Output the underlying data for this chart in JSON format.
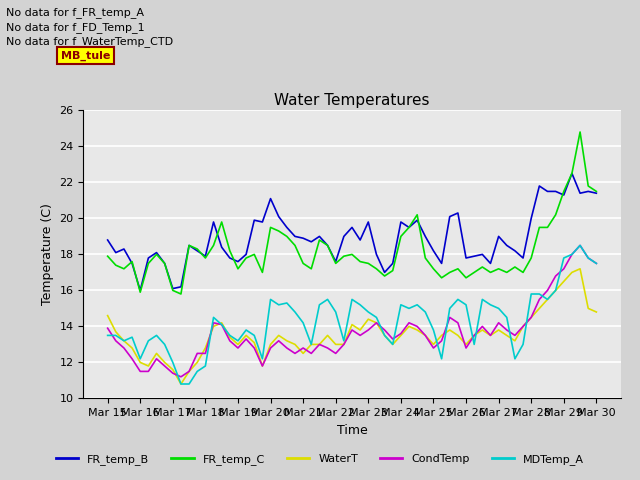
{
  "title": "Water Temperatures",
  "xlabel": "Time",
  "ylabel": "Temperature (C)",
  "ylim": [
    10,
    26
  ],
  "yticks": [
    10,
    12,
    14,
    16,
    18,
    20,
    22,
    24,
    26
  ],
  "annotations": [
    "No data for f_FR_temp_A",
    "No data for f_FD_Temp_1",
    "No data for f_WaterTemp_CTD"
  ],
  "x_labels": [
    "Mar 15",
    "Mar 16",
    "Mar 17",
    "Mar 18",
    "Mar 19",
    "Mar 20",
    "Mar 21",
    "Mar 22",
    "Mar 23",
    "Mar 24",
    "Mar 25",
    "Mar 26",
    "Mar 27",
    "Mar 28",
    "Mar 29",
    "Mar 30"
  ],
  "FR_temp_B": [
    18.8,
    18.1,
    18.3,
    17.5,
    16.0,
    17.8,
    18.1,
    17.5,
    16.1,
    16.2,
    18.5,
    18.2,
    17.9,
    19.8,
    18.4,
    17.8,
    17.6,
    18.0,
    19.9,
    19.8,
    21.1,
    20.1,
    19.5,
    19.0,
    18.9,
    18.7,
    19.0,
    18.5,
    17.6,
    19.0,
    19.5,
    18.8,
    19.8,
    18.0,
    17.0,
    17.5,
    19.8,
    19.5,
    19.9,
    19.0,
    18.2,
    17.5,
    20.1,
    20.3,
    17.8,
    17.9,
    18.0,
    17.5,
    19.0,
    18.5,
    18.2,
    17.8,
    20.0,
    21.8,
    21.5,
    21.5,
    21.3,
    22.5,
    21.4,
    21.5,
    21.4
  ],
  "FR_temp_C": [
    17.9,
    17.4,
    17.2,
    17.6,
    15.9,
    17.5,
    18.0,
    17.5,
    16.0,
    15.8,
    18.5,
    18.3,
    17.8,
    18.5,
    19.8,
    18.2,
    17.2,
    17.8,
    18.0,
    17.0,
    19.5,
    19.3,
    19.0,
    18.5,
    17.5,
    17.2,
    18.8,
    18.5,
    17.5,
    17.9,
    18.0,
    17.6,
    17.5,
    17.2,
    16.8,
    17.1,
    19.0,
    19.5,
    20.2,
    17.8,
    17.2,
    16.7,
    17.0,
    17.2,
    16.7,
    17.0,
    17.3,
    17.0,
    17.2,
    17.0,
    17.3,
    17.0,
    17.8,
    19.5,
    19.5,
    20.2,
    21.5,
    22.5,
    24.8,
    21.8,
    21.5
  ],
  "WaterT": [
    14.6,
    13.7,
    13.2,
    12.8,
    12.0,
    11.8,
    12.5,
    12.0,
    11.6,
    10.8,
    11.5,
    12.0,
    12.8,
    14.0,
    14.2,
    13.4,
    13.0,
    13.5,
    13.1,
    11.8,
    13.0,
    13.5,
    13.2,
    13.0,
    12.5,
    13.0,
    13.0,
    13.5,
    13.0,
    13.0,
    14.1,
    13.8,
    14.4,
    14.2,
    13.5,
    13.0,
    13.5,
    14.0,
    13.8,
    13.5,
    13.0,
    13.5,
    13.8,
    13.5,
    13.0,
    13.5,
    13.8,
    13.5,
    13.8,
    13.5,
    13.2,
    14.0,
    14.5,
    15.0,
    15.5,
    16.0,
    16.5,
    17.0,
    17.2,
    15.0,
    14.8
  ],
  "CondTemp": [
    13.9,
    13.2,
    12.8,
    12.2,
    11.5,
    11.5,
    12.2,
    11.8,
    11.4,
    11.2,
    11.5,
    12.5,
    12.5,
    14.2,
    14.1,
    13.2,
    12.8,
    13.3,
    12.8,
    11.8,
    12.8,
    13.2,
    12.8,
    12.5,
    12.8,
    12.5,
    13.0,
    12.8,
    12.5,
    13.0,
    13.8,
    13.5,
    13.8,
    14.2,
    13.8,
    13.3,
    13.6,
    14.2,
    14.0,
    13.5,
    12.8,
    13.2,
    14.5,
    14.2,
    12.8,
    13.5,
    14.0,
    13.5,
    14.2,
    13.8,
    13.5,
    14.0,
    14.5,
    15.5,
    16.0,
    16.8,
    17.2,
    18.0,
    18.5,
    17.8,
    17.5
  ],
  "MDTemp_A": [
    13.5,
    13.5,
    13.2,
    13.4,
    12.2,
    13.2,
    13.5,
    13.0,
    12.0,
    10.8,
    10.8,
    11.5,
    11.8,
    14.5,
    14.1,
    13.5,
    13.2,
    13.8,
    13.5,
    12.2,
    15.5,
    15.2,
    15.3,
    14.8,
    14.2,
    13.0,
    15.2,
    15.5,
    14.8,
    13.2,
    15.5,
    15.2,
    14.8,
    14.5,
    13.5,
    13.0,
    15.2,
    15.0,
    15.2,
    14.8,
    13.8,
    12.2,
    15.0,
    15.5,
    15.2,
    13.0,
    15.5,
    15.2,
    15.0,
    14.5,
    12.2,
    13.0,
    15.8,
    15.8,
    15.5,
    16.0,
    17.8,
    18.0,
    18.5,
    17.8,
    17.5
  ],
  "series_colors": {
    "FR_temp_B": "#0000cc",
    "FR_temp_C": "#00dd00",
    "WaterT": "#dddd00",
    "CondTemp": "#cc00cc",
    "MDTemp_A": "#00cccc"
  }
}
